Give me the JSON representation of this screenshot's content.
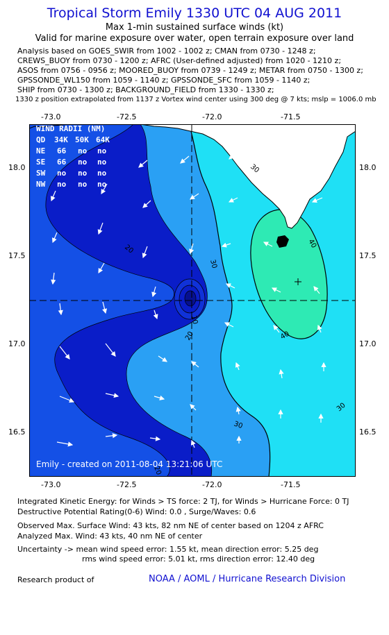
{
  "header": {
    "title": "Tropical Storm Emily 1330 UTC 04 AUG 2011",
    "subtitle": "Max 1-min sustained surface winds (kt)",
    "validity": "Valid for marine exposure over water, open terrain exposure over land"
  },
  "sources": [
    "Analysis based on GOES_SWIR from 1002 - 1002 z; CMAN from 0730 - 1248 z;",
    "CREWS_BUOY from 0730 - 1200 z; AFRC (User-defined adjusted) from 1020 - 1210 z;",
    "ASOS from 0756 - 0956 z; MOORED_BUOY from 0739 - 1249 z; METAR from 0750 - 1300 z;",
    "GPSSONDE_WL150 from 1059 - 1140 z; GPSSONDE_SFC from 1059 - 1140 z;",
    "SHIP from 0730 - 1300 z; BACKGROUND_FIELD from 1330 - 1330 z;"
  ],
  "position_note": "1330 z position extrapolated from 1137 z Vortex wind center using 300 deg @ 7 kts; mslp = 1006.0 mb",
  "axes": {
    "lon_ticks": [
      "-73.0",
      "-72.5",
      "-72.0",
      "-71.5"
    ],
    "lat_ticks": [
      "18.0",
      "17.5",
      "17.0",
      "16.5"
    ]
  },
  "wind_radii": {
    "header": [
      "QD",
      "34K",
      "50K",
      "64K"
    ],
    "title": "WIND RADII (NM)",
    "rows": [
      [
        "NE",
        "66",
        "no",
        "no"
      ],
      [
        "SE",
        "66",
        "no",
        "no"
      ],
      [
        "SW",
        "no",
        "no",
        "no"
      ],
      [
        "NW",
        "no",
        "no",
        "no"
      ]
    ]
  },
  "contour_labels": [
    "30",
    "40",
    "20",
    "30",
    "10",
    "20",
    "40",
    "30",
    "30",
    "20"
  ],
  "created": "Emily - created on 2011-08-04 13:21:06 UTC",
  "footer": {
    "ike": "Integrated Kinetic Energy:  for Winds > TS force: 2 TJ,  for Winds > Hurricane Force: 0 TJ",
    "dpr": "Destructive Potential Rating(0-6)   Wind: 0.0 , Surge/Waves: 0.6",
    "obs_max": "Observed Max. Surface Wind: 43 kts, 82 nm NE of center based on 1204 z AFRC",
    "analyzed_max": "Analyzed Max. Wind: 43 kts, 40 nm NE of center",
    "uncertainty1": "Uncertainty -> mean wind speed error: 1.55 kt,   mean direction error: 5.25 deg",
    "uncertainty2": "rms wind speed error: 5.01 kt,   rms direction error: 12.40 deg",
    "research_label": "Research product of",
    "org": "NOAA / AOML / Hurricane Research Division"
  },
  "colors": {
    "title": "#1010d0",
    "band_0_10": "#0a1dc8",
    "band_10_20": "#1450e6",
    "band_20_30": "#2aa0f4",
    "band_30_40": "#1fe0f5",
    "band_40_50": "#2eeab4",
    "land": "#ffffff"
  }
}
